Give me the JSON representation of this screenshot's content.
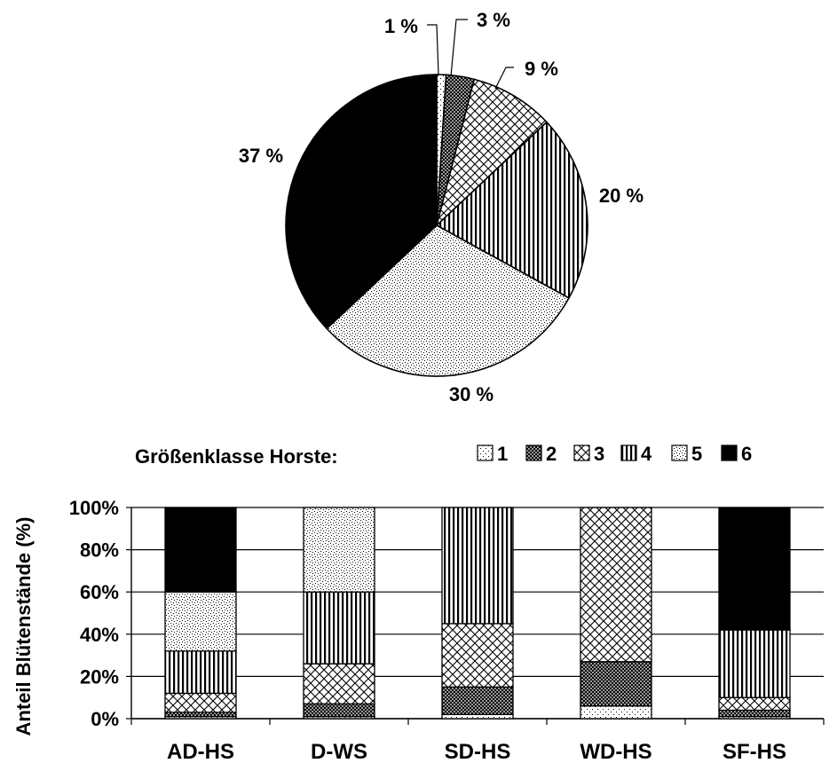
{
  "colors": {
    "ink": "#000000",
    "paper": "#ffffff",
    "grid": "#000000"
  },
  "chart_data": [
    {
      "type": "pie",
      "title": "",
      "categories": [
        "1",
        "2",
        "3",
        "4",
        "5",
        "6"
      ],
      "values": [
        1,
        3,
        9,
        20,
        30,
        37
      ],
      "labels": [
        "1 %",
        "3 %",
        "9 %",
        "20 %",
        "30 %",
        "37 %"
      ],
      "patterns": [
        "dots-sparse",
        "crosshatch-dense",
        "diamond-lattice",
        "vertical-stripes",
        "dots-dense",
        "solid-black"
      ]
    },
    {
      "type": "bar",
      "stacked": true,
      "normalized": true,
      "title": "",
      "legend": {
        "title": "Größenklasse Horste:",
        "entries": [
          "1",
          "2",
          "3",
          "4",
          "5",
          "6"
        ],
        "placement": "top"
      },
      "categories": [
        "AD-HS",
        "D-WS",
        "SD-HS",
        "WD-HS",
        "SF-HS"
      ],
      "series": [
        {
          "name": "1",
          "values": [
            1,
            1,
            2,
            6,
            1
          ]
        },
        {
          "name": "2",
          "values": [
            2,
            6,
            13,
            21,
            3
          ]
        },
        {
          "name": "3",
          "values": [
            9,
            19,
            30,
            73,
            6
          ]
        },
        {
          "name": "4",
          "values": [
            20,
            34,
            55,
            0,
            32
          ]
        },
        {
          "name": "5",
          "values": [
            28,
            40,
            0,
            0,
            0
          ]
        },
        {
          "name": "6",
          "values": [
            40,
            0,
            0,
            0,
            58
          ]
        }
      ],
      "xlabel": "",
      "ylabel": "Anteil Blütenstände (%)",
      "ylim": [
        0,
        100
      ],
      "yticks": [
        "0%",
        "20%",
        "40%",
        "60%",
        "80%",
        "100%"
      ],
      "grid": true
    }
  ]
}
